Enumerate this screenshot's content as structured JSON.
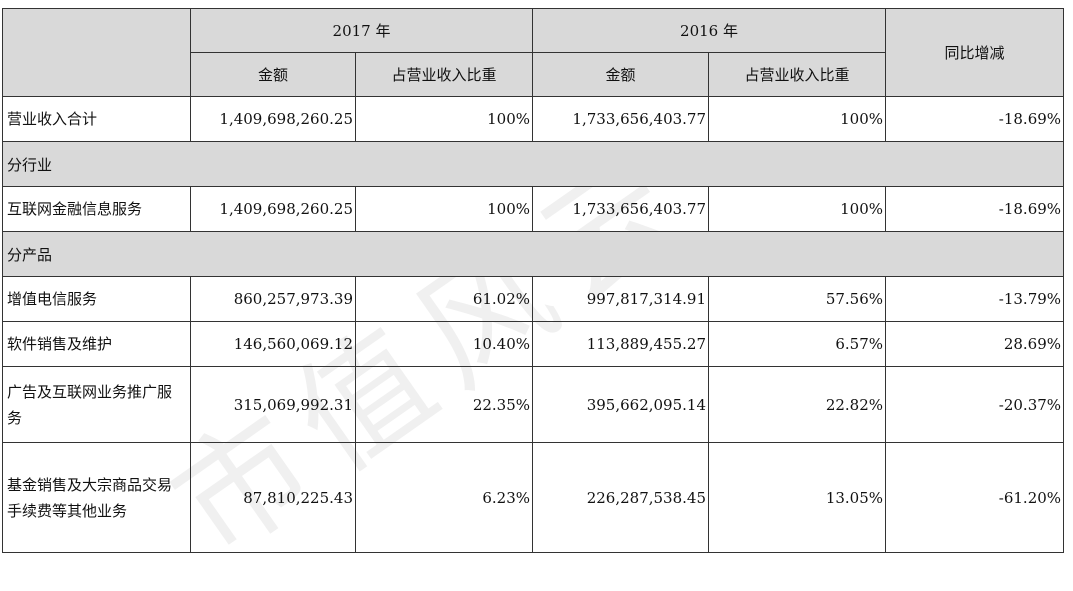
{
  "header": {
    "year_a": "2017 年",
    "year_b": "2016 年",
    "col_amount": "金额",
    "col_ratio": "占营业收入比重",
    "col_yoy": "同比增减"
  },
  "rows_total": {
    "label": "营业收入合计",
    "a_amount": "1,409,698,260.25",
    "a_ratio": "100%",
    "b_amount": "1,733,656,403.77",
    "b_ratio": "100%",
    "yoy": "-18.69%"
  },
  "section_industry": "分行业",
  "row_industry": {
    "label": "互联网金融信息服务",
    "a_amount": "1,409,698,260.25",
    "a_ratio": "100%",
    "b_amount": "1,733,656,403.77",
    "b_ratio": "100%",
    "yoy": "-18.69%"
  },
  "section_product": "分产品",
  "products": [
    {
      "label": "增值电信服务",
      "a_amount": "860,257,973.39",
      "a_ratio": "61.02%",
      "b_amount": "997,817,314.91",
      "b_ratio": "57.56%",
      "yoy": "-13.79%"
    },
    {
      "label": "软件销售及维护",
      "a_amount": "146,560,069.12",
      "a_ratio": "10.40%",
      "b_amount": "113,889,455.27",
      "b_ratio": "6.57%",
      "yoy": "28.69%"
    },
    {
      "label": "广告及互联网业务推广服务",
      "a_amount": "315,069,992.31",
      "a_ratio": "22.35%",
      "b_amount": "395,662,095.14",
      "b_ratio": "22.82%",
      "yoy": "-20.37%"
    },
    {
      "label": "基金销售及大宗商品交易手续费等其他业务",
      "a_amount": "87,810,225.43",
      "a_ratio": "6.23%",
      "b_amount": "226,287,538.45",
      "b_ratio": "13.05%",
      "yoy": "-61.20%"
    }
  ],
  "watermark": "市值风云"
}
